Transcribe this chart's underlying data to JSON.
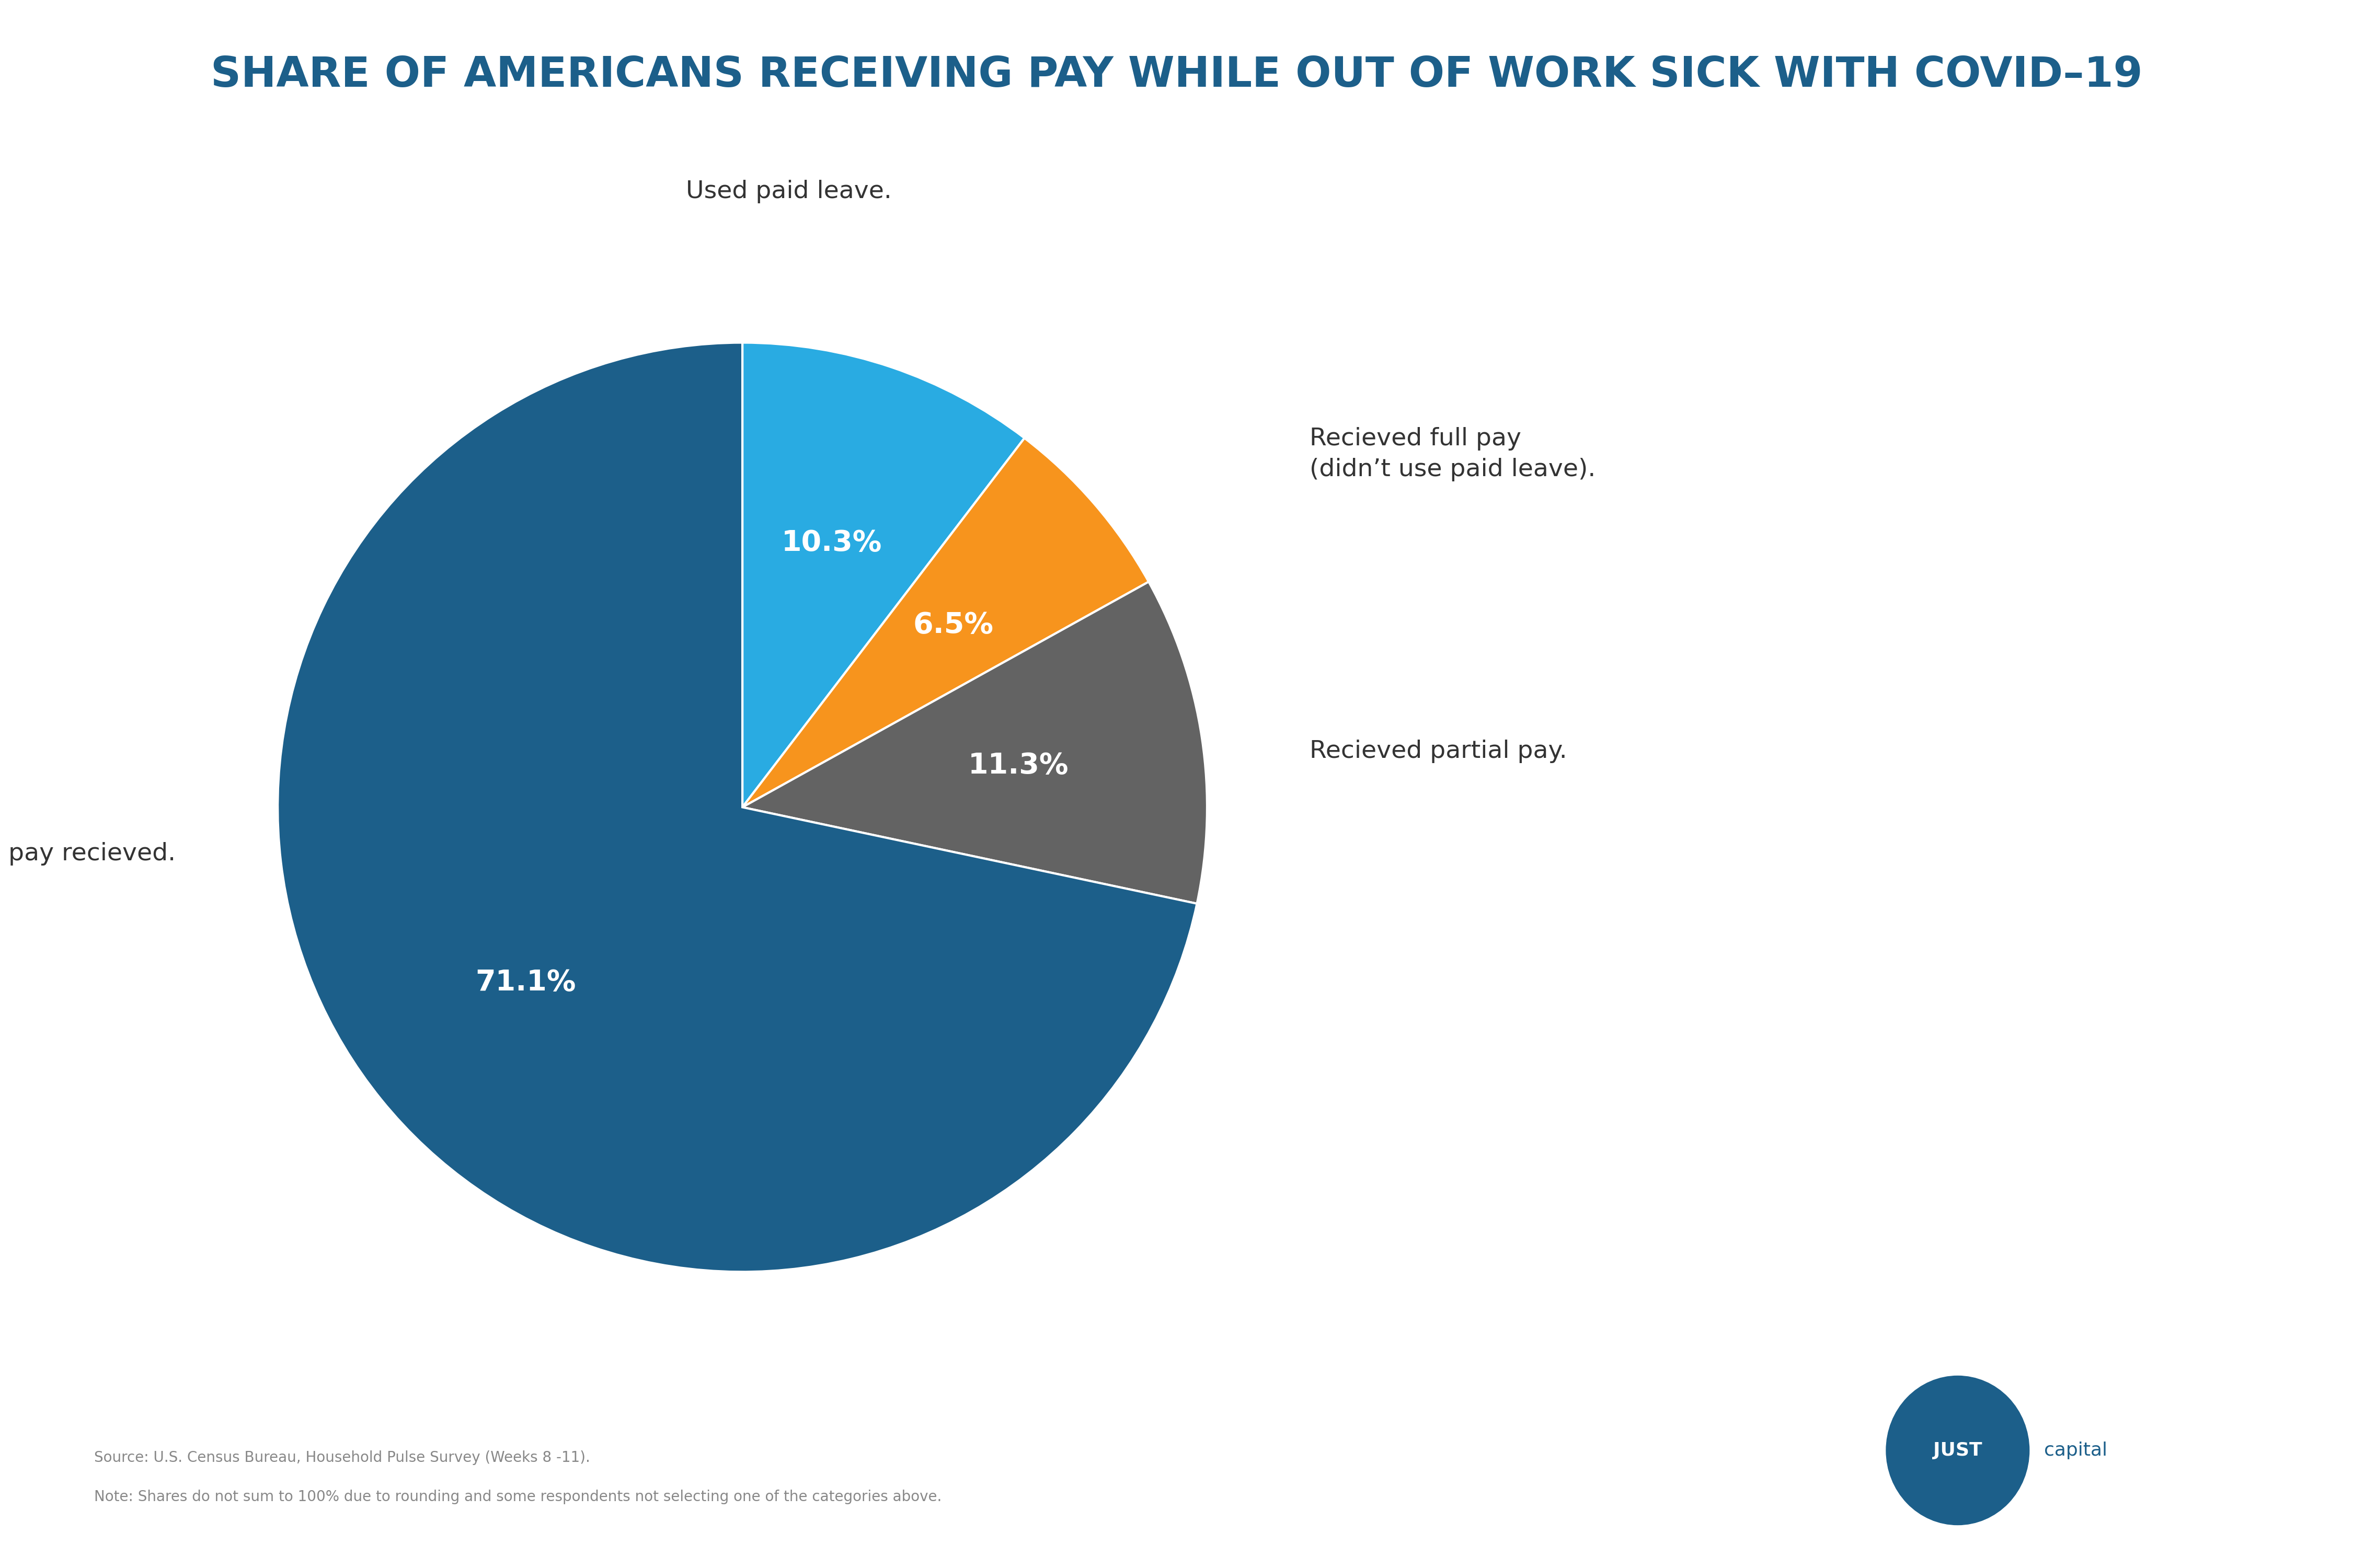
{
  "title": "SHARE OF AMERICANS RECEIVING PAY WHILE OUT OF WORK SICK WITH COVID–19",
  "slices": [
    10.3,
    6.5,
    11.3,
    71.1
  ],
  "labels_internal": [
    "10.3%",
    "6.5%",
    "11.3%",
    "71.1%"
  ],
  "labels_external": [
    "Used paid leave.",
    "Recieved full pay\n(didn’t use paid leave).",
    "Recieved partial pay.",
    "No pay recieved."
  ],
  "colors": [
    "#29ABE2",
    "#F7941D",
    "#636363",
    "#1C5F8A"
  ],
  "startangle": 90,
  "source_line1": "Source: U.S. Census Bureau, Household Pulse Survey (Weeks 8 -11).",
  "source_line2": "Note: Shares do not sum to 100% due to rounding and some respondents not selecting one of the categories above.",
  "background_color": "#FFFFFF",
  "title_color": "#1C5F8A",
  "source_color": "#888888",
  "just_color": "#1C5F8A"
}
